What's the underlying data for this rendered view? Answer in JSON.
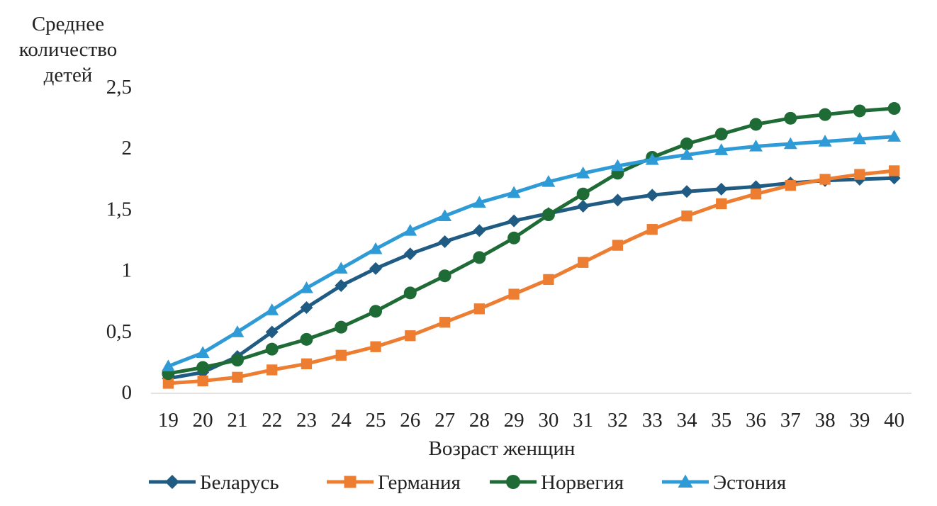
{
  "chart_data": {
    "type": "line",
    "ylabel_lines": [
      "Среднее",
      "количество",
      "детей"
    ],
    "xlabel": "Возраст женщин",
    "ylim": [
      0,
      2.5
    ],
    "yticks": [
      "0",
      "0,5",
      "1",
      "1,5",
      "2",
      "2,5"
    ],
    "ytick_values": [
      0,
      0.5,
      1,
      1.5,
      2,
      2.5
    ],
    "x": [
      "19",
      "20",
      "21",
      "22",
      "23",
      "24",
      "25",
      "26",
      "27",
      "28",
      "29",
      "30",
      "31",
      "32",
      "33",
      "34",
      "35",
      "36",
      "37",
      "38",
      "39",
      "40"
    ],
    "grid": false,
    "legend_position": "bottom",
    "series": [
      {
        "name": "Беларусь",
        "color": "#1f5b82",
        "marker": "diamond",
        "values": [
          0.11,
          0.16,
          0.29,
          0.49,
          0.69,
          0.87,
          1.01,
          1.13,
          1.23,
          1.32,
          1.4,
          1.46,
          1.52,
          1.57,
          1.61,
          1.64,
          1.66,
          1.68,
          1.71,
          1.73,
          1.74,
          1.75
        ]
      },
      {
        "name": "Германия",
        "color": "#ed7d31",
        "marker": "square",
        "values": [
          0.07,
          0.09,
          0.12,
          0.18,
          0.23,
          0.3,
          0.37,
          0.46,
          0.57,
          0.68,
          0.8,
          0.92,
          1.06,
          1.2,
          1.33,
          1.44,
          1.54,
          1.62,
          1.69,
          1.74,
          1.78,
          1.81
        ]
      },
      {
        "name": "Норвегия",
        "color": "#1e6b35",
        "marker": "circle",
        "values": [
          0.15,
          0.2,
          0.26,
          0.35,
          0.43,
          0.53,
          0.66,
          0.81,
          0.95,
          1.1,
          1.26,
          1.45,
          1.62,
          1.79,
          1.92,
          2.03,
          2.11,
          2.19,
          2.24,
          2.27,
          2.3,
          2.32
        ]
      },
      {
        "name": "Эстония",
        "color": "#2e9bd6",
        "marker": "triangle",
        "values": [
          0.21,
          0.32,
          0.49,
          0.67,
          0.85,
          1.01,
          1.17,
          1.32,
          1.44,
          1.55,
          1.63,
          1.72,
          1.79,
          1.85,
          1.9,
          1.94,
          1.98,
          2.01,
          2.03,
          2.05,
          2.07,
          2.09
        ]
      }
    ]
  }
}
